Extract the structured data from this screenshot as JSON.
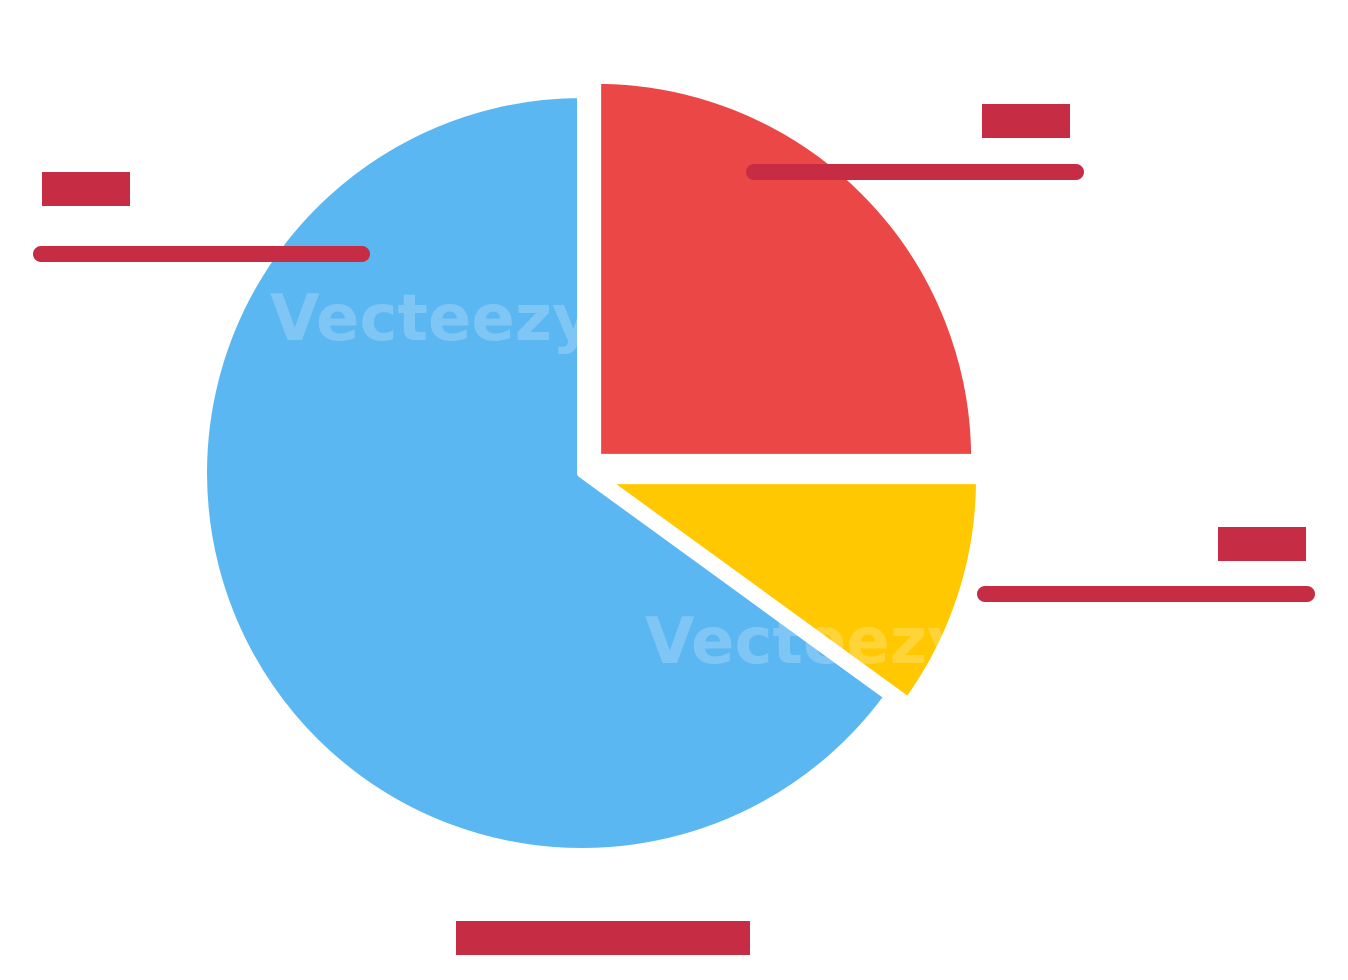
{
  "chart_data": {
    "type": "pie",
    "title": "",
    "slices": [
      {
        "value": 65,
        "color": "#5bb7f2",
        "exploded": false
      },
      {
        "value": 25,
        "color": "#eb4747",
        "exploded": true
      },
      {
        "value": 10,
        "color": "#ffc800",
        "exploded": true
      }
    ],
    "label_placeholder_color": "#c62d45"
  },
  "watermark": {
    "text": "Vecteezy"
  }
}
